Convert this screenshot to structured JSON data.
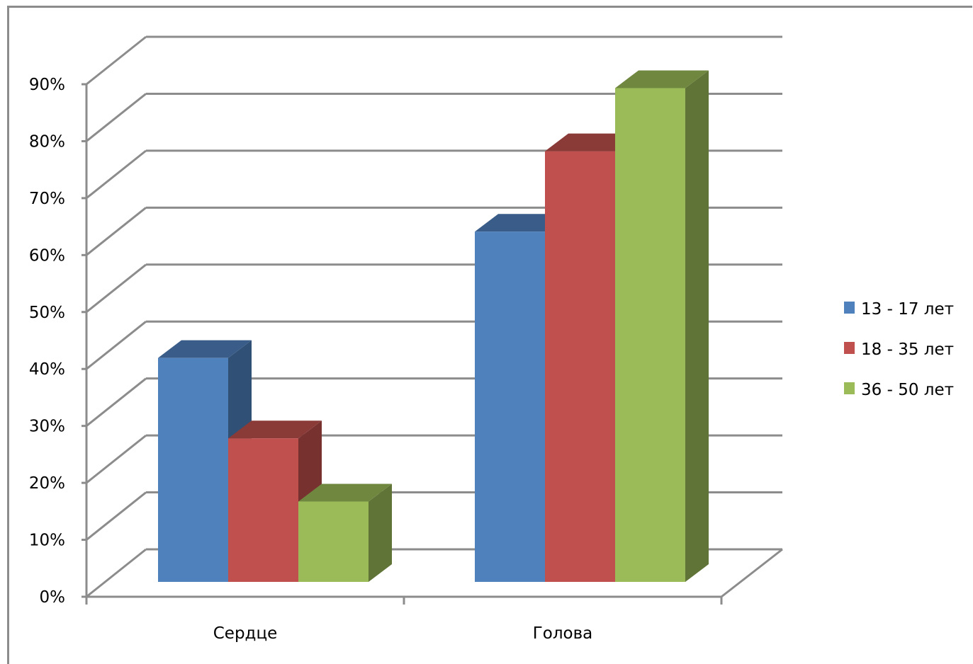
{
  "chart_data": {
    "type": "bar",
    "style": "3d-clustered-column",
    "categories": [
      "Сердце",
      "Голова"
    ],
    "series": [
      {
        "name": "13 - 17 лет",
        "values": [
          39,
          61
        ],
        "color": "#4F81BD"
      },
      {
        "name": "18 - 35 лет",
        "values": [
          25,
          75
        ],
        "color": "#C0504D"
      },
      {
        "name": "36 - 50 лет",
        "values": [
          14,
          86
        ],
        "color": "#9BBB59"
      }
    ],
    "y_ticks": [
      "0%",
      "10%",
      "20%",
      "30%",
      "40%",
      "50%",
      "60%",
      "70%",
      "80%",
      "90%"
    ],
    "ylim": [
      0,
      90
    ],
    "y_unit": "%",
    "grid": true,
    "legend_position": "right"
  }
}
